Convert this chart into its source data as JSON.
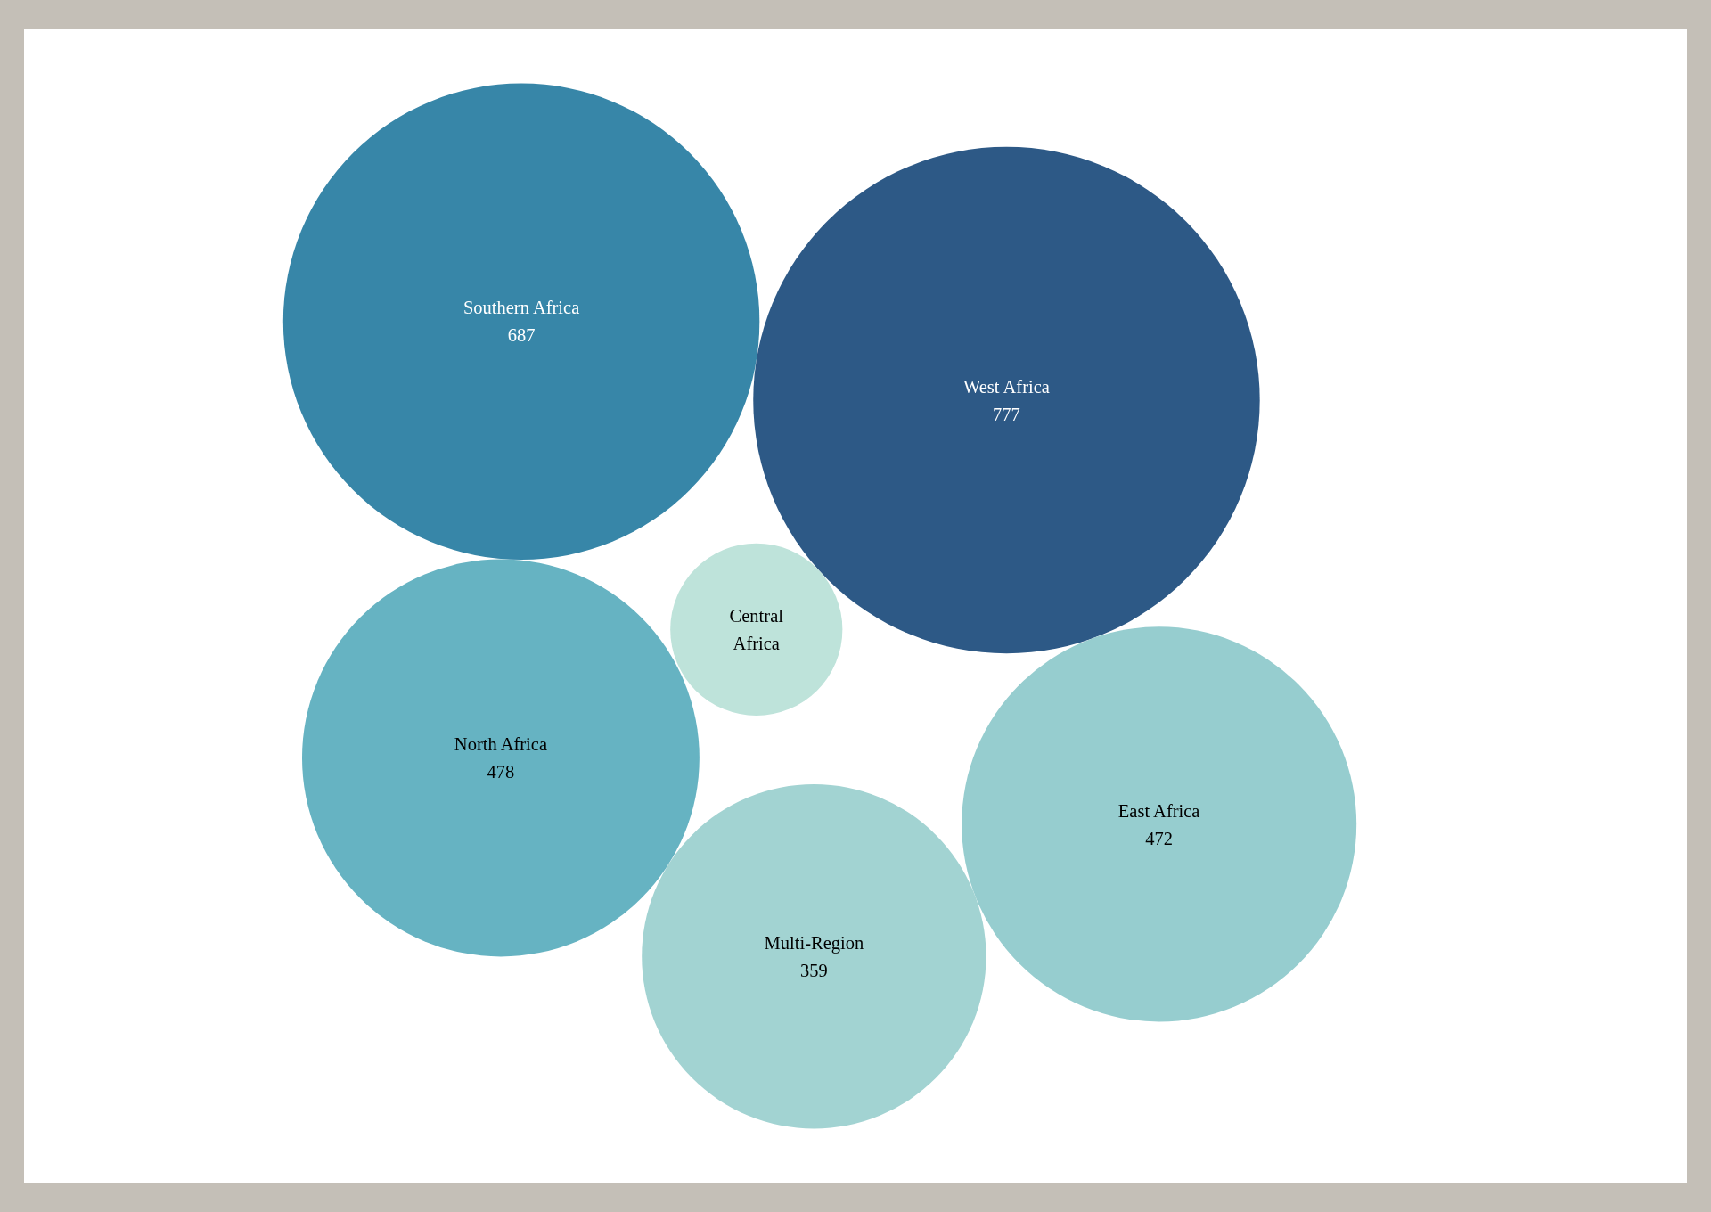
{
  "chart_data": {
    "type": "other",
    "categories": [
      "Southern Africa",
      "West Africa",
      "East Africa",
      "Multi-Region",
      "Central Africa",
      "North Africa"
    ],
    "values": [
      687,
      777,
      472,
      359,
      null,
      478
    ],
    "data_labels": true,
    "colors": [
      "#3786a8",
      "#2d5986",
      "#96cdcf",
      "#a2d3d2",
      "#bee3da",
      "#66b3c2"
    ]
  }
}
